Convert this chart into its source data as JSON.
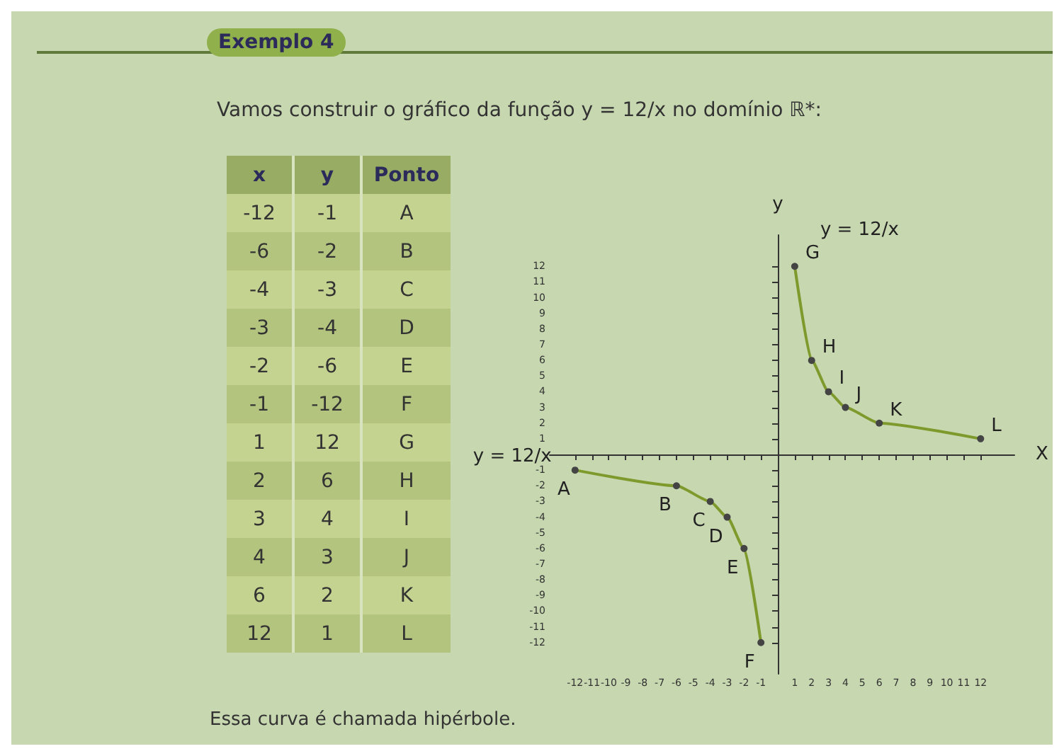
{
  "chart_data": [
    {
      "type": "line",
      "subtitle": "Vamos construir o gráfico da função y = 12/x no domínio ℝ*:",
      "xlabel": "X",
      "ylabel": "y",
      "series": [
        {
          "name": "y = 12/x",
          "color": "#7f9a2c",
          "x": [
            -12,
            -6,
            -4,
            -3,
            -2,
            -1
          ],
          "values": [
            -1,
            -2,
            -3,
            -4,
            -6,
            -12
          ],
          "value_labels": [
            "A",
            "B",
            "C",
            "D",
            "E",
            "F"
          ]
        },
        {
          "name": "y = 12/x",
          "color": "#7f9a2c",
          "x": [
            1,
            2,
            3,
            4,
            6,
            12
          ],
          "values": [
            12,
            6,
            4,
            3,
            2,
            1
          ],
          "value_labels": [
            "G",
            "H",
            "I",
            "J",
            "K",
            "L"
          ]
        }
      ],
      "xlim": [
        -13.5,
        14
      ],
      "ylim": [
        -14,
        14
      ],
      "xticks": [
        -12,
        -11,
        -10,
        -9,
        -8,
        -7,
        -6,
        -5,
        -4,
        -3,
        -2,
        -1,
        1,
        2,
        3,
        4,
        5,
        6,
        7,
        8,
        9,
        10,
        11,
        12
      ],
      "yticks": [
        -12,
        -11,
        -10,
        -9,
        -8,
        -7,
        -6,
        -5,
        -4,
        -3,
        -2,
        -1,
        1,
        2,
        3,
        4,
        5,
        6,
        7,
        8,
        9,
        10,
        11,
        12
      ],
      "marker": "circle",
      "line_style": "solid",
      "grid": false,
      "legend": false,
      "annotations": [
        "Essa curva é chamada hipérbole."
      ]
    },
    {
      "type": "other",
      "title": "Exemplo 4",
      "annotations": [
        "x",
        "y",
        "Ponto",
        "-12",
        "-1",
        "A",
        "-6",
        "-2",
        "B",
        "-4",
        "-3",
        "C",
        "-3",
        "-4",
        "D",
        "-2",
        "-6",
        "E",
        "-1",
        "-12",
        "F",
        "1",
        "12",
        "G",
        "2",
        "6",
        "H",
        "3",
        "4",
        "I",
        "4",
        "3",
        "J",
        "6",
        "2",
        "K",
        "12",
        "1",
        "L"
      ]
    }
  ]
}
